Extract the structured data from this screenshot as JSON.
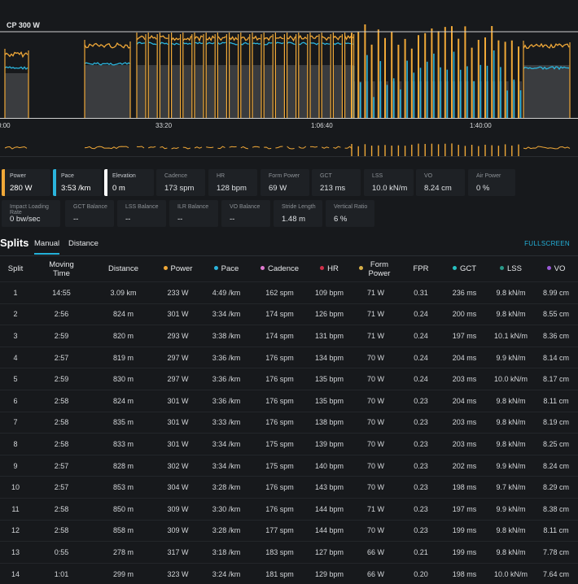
{
  "chart": {
    "cp_label": "CP 300 W",
    "time_ticks": [
      "0:00",
      "33:20",
      "1:06:40",
      "1:40:00"
    ],
    "colors": {
      "power": "#f0a838",
      "pace": "#2bb4dc",
      "elevation": "#3a3c3f",
      "grid": "#cfcfcf"
    }
  },
  "metrics": {
    "row1": [
      {
        "label": "Power",
        "value": "280 W",
        "accent": "#f0a838"
      },
      {
        "label": "Pace",
        "value": "3:53 /km",
        "accent": "#2bb4dc"
      },
      {
        "label": "Elevation",
        "value": "0 m",
        "accent": "#ffffff"
      },
      {
        "label": "Cadence",
        "value": "173 spm"
      },
      {
        "label": "HR",
        "value": "128 bpm"
      },
      {
        "label": "Form Power",
        "value": "69 W"
      },
      {
        "label": "GCT",
        "value": "213 ms"
      },
      {
        "label": "LSS",
        "value": "10.0 kN/m"
      },
      {
        "label": "VO",
        "value": "8.24 cm"
      },
      {
        "label": "Air Power",
        "value": "0 %"
      }
    ],
    "row2": [
      {
        "label": "Impact Loading Rate",
        "value": "0 bw/sec"
      },
      {
        "label": "GCT Balance",
        "value": "--"
      },
      {
        "label": "LSS Balance",
        "value": "--"
      },
      {
        "label": "ILR Balance",
        "value": "--"
      },
      {
        "label": "VO Balance",
        "value": "--"
      },
      {
        "label": "Stride Length",
        "value": "1.48 m"
      },
      {
        "label": "Vertical Ratio",
        "value": "6 %"
      }
    ]
  },
  "splits": {
    "title": "Splits",
    "tabs": [
      "Manual",
      "Distance"
    ],
    "fullscreen": "FULLSCREEN",
    "columns": [
      {
        "label": "Split"
      },
      {
        "label": "Moving Time"
      },
      {
        "label": "Distance"
      },
      {
        "label": "Power",
        "dot": "#f0a838"
      },
      {
        "label": "Pace",
        "dot": "#2bb4dc"
      },
      {
        "label": "Cadence",
        "dot": "#e07ad0"
      },
      {
        "label": "HR",
        "dot": "#d0304a"
      },
      {
        "label": "Form Power",
        "dot": "#d8b048"
      },
      {
        "label": "FPR"
      },
      {
        "label": "GCT",
        "dot": "#27c1c1"
      },
      {
        "label": "LSS",
        "dot": "#2a9a8a"
      },
      {
        "label": "VO",
        "dot": "#9a5ad8"
      }
    ],
    "rows": [
      [
        "1",
        "14:55",
        "3.09 km",
        "233 W",
        "4:49 /km",
        "162 spm",
        "109 bpm",
        "71 W",
        "0.31",
        "236 ms",
        "9.8 kN/m",
        "8.99 cm"
      ],
      [
        "2",
        "2:56",
        "824 m",
        "301 W",
        "3:34 /km",
        "174 spm",
        "126 bpm",
        "71 W",
        "0.24",
        "200 ms",
        "9.8 kN/m",
        "8.55 cm"
      ],
      [
        "3",
        "2:59",
        "820 m",
        "293 W",
        "3:38 /km",
        "174 spm",
        "131 bpm",
        "71 W",
        "0.24",
        "197 ms",
        "10.1 kN/m",
        "8.36 cm"
      ],
      [
        "4",
        "2:57",
        "819 m",
        "297 W",
        "3:36 /km",
        "176 spm",
        "134 bpm",
        "70 W",
        "0.24",
        "204 ms",
        "9.9 kN/m",
        "8.14 cm"
      ],
      [
        "5",
        "2:59",
        "830 m",
        "297 W",
        "3:36 /km",
        "176 spm",
        "135 bpm",
        "70 W",
        "0.24",
        "203 ms",
        "10.0 kN/m",
        "8.17 cm"
      ],
      [
        "6",
        "2:58",
        "824 m",
        "301 W",
        "3:36 /km",
        "176 spm",
        "135 bpm",
        "70 W",
        "0.23",
        "204 ms",
        "9.8 kN/m",
        "8.11 cm"
      ],
      [
        "7",
        "2:58",
        "835 m",
        "301 W",
        "3:33 /km",
        "176 spm",
        "138 bpm",
        "70 W",
        "0.23",
        "203 ms",
        "9.8 kN/m",
        "8.19 cm"
      ],
      [
        "8",
        "2:58",
        "833 m",
        "301 W",
        "3:34 /km",
        "175 spm",
        "139 bpm",
        "70 W",
        "0.23",
        "203 ms",
        "9.8 kN/m",
        "8.25 cm"
      ],
      [
        "9",
        "2:57",
        "828 m",
        "302 W",
        "3:34 /km",
        "175 spm",
        "140 bpm",
        "70 W",
        "0.23",
        "202 ms",
        "9.9 kN/m",
        "8.24 cm"
      ],
      [
        "10",
        "2:57",
        "853 m",
        "304 W",
        "3:28 /km",
        "176 spm",
        "143 bpm",
        "70 W",
        "0.23",
        "198 ms",
        "9.7 kN/m",
        "8.29 cm"
      ],
      [
        "11",
        "2:58",
        "850 m",
        "309 W",
        "3:30 /km",
        "176 spm",
        "144 bpm",
        "71 W",
        "0.23",
        "197 ms",
        "9.9 kN/m",
        "8.38 cm"
      ],
      [
        "12",
        "2:58",
        "858 m",
        "309 W",
        "3:28 /km",
        "177 spm",
        "144 bpm",
        "70 W",
        "0.23",
        "199 ms",
        "9.8 kN/m",
        "8.11 cm"
      ],
      [
        "13",
        "0:55",
        "278 m",
        "317 W",
        "3:18 /km",
        "183 spm",
        "127 bpm",
        "66 W",
        "0.21",
        "199 ms",
        "9.8 kN/m",
        "7.78 cm"
      ],
      [
        "14",
        "1:01",
        "299 m",
        "323 W",
        "3:24 /km",
        "181 spm",
        "129 bpm",
        "66 W",
        "0.20",
        "198 ms",
        "10.0 kN/m",
        "7.64 cm"
      ]
    ]
  }
}
